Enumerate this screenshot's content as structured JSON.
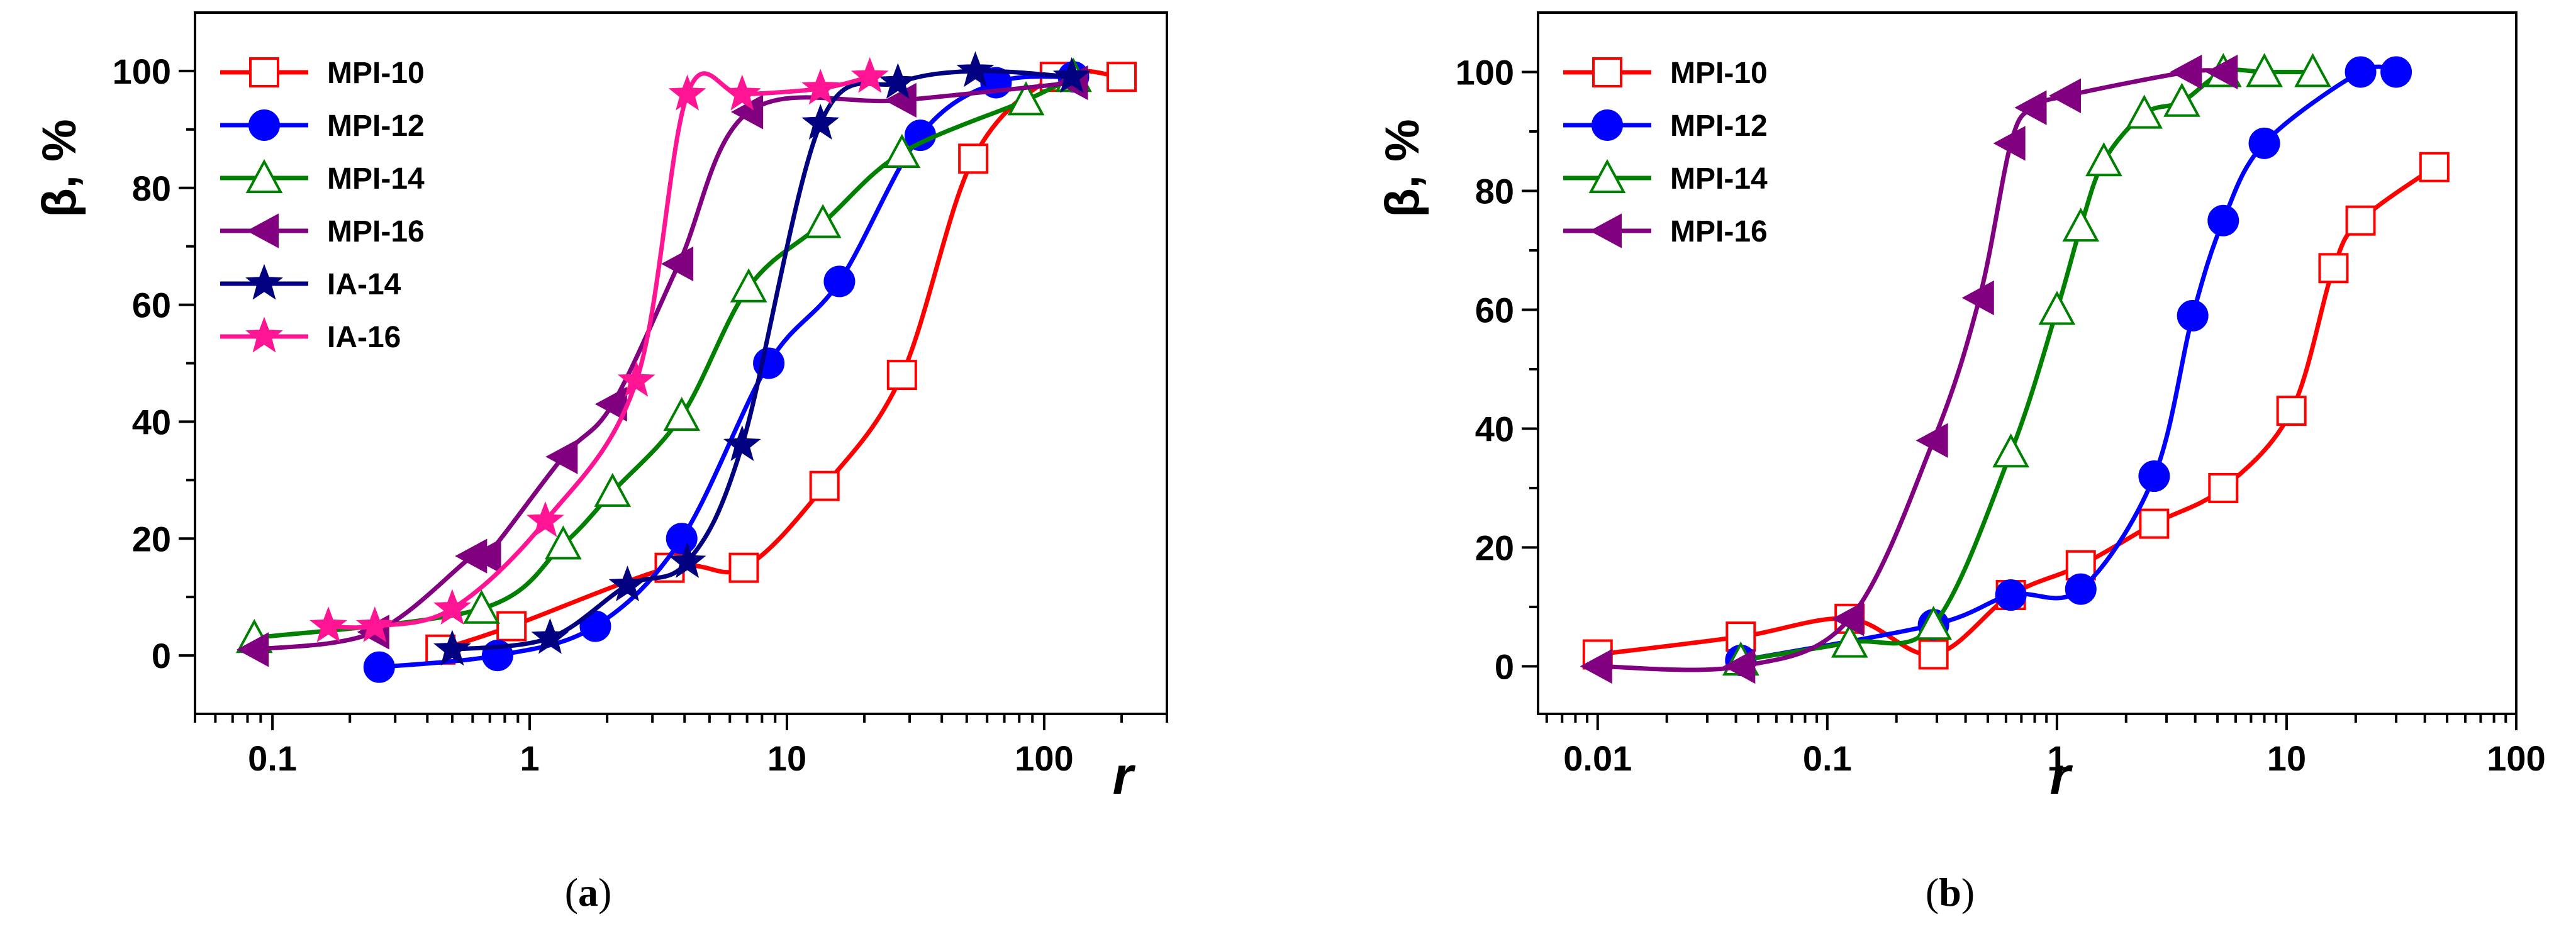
{
  "chart_data": [
    {
      "panel": "a",
      "caption": "(a)",
      "type": "scatter",
      "xscale": "log",
      "xlim": [
        0.05,
        300
      ],
      "ylim": [
        -10,
        110
      ],
      "xlabel": "r",
      "ylabel": "β, %",
      "xticks": [
        0.1,
        1,
        10,
        100
      ],
      "xtick_labels": [
        "0.1",
        "1",
        "10",
        "100"
      ],
      "yticks": [
        0,
        20,
        40,
        60,
        80,
        100
      ],
      "ytick_labels": [
        "0",
        "20",
        "40",
        "60",
        "80",
        "100"
      ],
      "legend_position": "top-left",
      "series": [
        {
          "name": "MPI-10",
          "color": "#ff0000",
          "marker": "square-open",
          "x": [
            0.45,
            0.85,
            3.5,
            6.8,
            14,
            28,
            53,
            110,
            200
          ],
          "y": [
            1,
            5,
            15,
            15,
            29,
            48,
            85,
            99,
            99
          ]
        },
        {
          "name": "MPI-12",
          "color": "#0000ff",
          "marker": "circle-filled",
          "x": [
            0.26,
            0.75,
            1.8,
            3.9,
            8.5,
            16,
            33,
            65,
            130
          ],
          "y": [
            -2,
            0,
            5,
            20,
            50,
            64,
            89,
            98,
            99
          ]
        },
        {
          "name": "MPI-14",
          "color": "#008000",
          "marker": "triangle-open",
          "x": [
            0.085,
            0.65,
            1.35,
            2.1,
            3.9,
            7.1,
            13.8,
            28,
            85,
            130
          ],
          "y": [
            3,
            8,
            19,
            28,
            41,
            63,
            74,
            86,
            95,
            99
          ]
        },
        {
          "name": "MPI-16",
          "color": "#800080",
          "marker": "triangle-left-filled",
          "x": [
            0.085,
            0.25,
            0.6,
            0.68,
            1.35,
            2.1,
            3.8,
            7.1,
            28,
            130
          ],
          "y": [
            1,
            4,
            17,
            17,
            34,
            43,
            67,
            93,
            95,
            98
          ]
        },
        {
          "name": "IA-14",
          "color": "#000080",
          "marker": "star-filled",
          "x": [
            0.5,
            1.2,
            2.4,
            4.1,
            6.7,
            13.5,
            27,
            54,
            128
          ],
          "y": [
            1,
            3,
            12,
            16,
            36,
            91,
            98,
            100,
            99
          ]
        },
        {
          "name": "IA-16",
          "color": "#ff1493",
          "marker": "star-filled",
          "x": [
            0.165,
            0.25,
            0.5,
            1.15,
            2.6,
            4.1,
            6.7,
            13.5,
            21
          ],
          "y": [
            5,
            5,
            8,
            23,
            47,
            96,
            96,
            97,
            99
          ]
        }
      ]
    },
    {
      "panel": "b",
      "caption": "(b)",
      "type": "scatter",
      "xscale": "log",
      "xlim": [
        0.0055,
        100
      ],
      "ylim": [
        -8,
        110
      ],
      "xlabel": "r",
      "ylabel": "β, %",
      "xticks": [
        0.01,
        0.1,
        1,
        10,
        100
      ],
      "xtick_labels": [
        "0.01",
        "0.1",
        "1",
        "10",
        "100"
      ],
      "yticks": [
        0,
        20,
        40,
        60,
        80,
        100
      ],
      "ytick_labels": [
        "0",
        "20",
        "40",
        "60",
        "80",
        "100"
      ],
      "legend_position": "top-left",
      "series": [
        {
          "name": "MPI-10",
          "color": "#ff0000",
          "marker": "square-open",
          "x": [
            0.01,
            0.042,
            0.125,
            0.29,
            0.63,
            1.27,
            2.65,
            5.3,
            10.5,
            16,
            21,
            44
          ],
          "y": [
            2,
            5,
            8,
            2,
            12,
            17,
            24,
            30,
            43,
            67,
            75,
            84
          ]
        },
        {
          "name": "MPI-12",
          "color": "#0000ff",
          "marker": "circle-filled",
          "x": [
            0.042,
            0.29,
            0.63,
            1.27,
            2.65,
            3.9,
            5.3,
            8,
            21,
            30
          ],
          "y": [
            1,
            7,
            12,
            13,
            32,
            59,
            75,
            88,
            100,
            100
          ]
        },
        {
          "name": "MPI-14",
          "color": "#008000",
          "marker": "triangle-open",
          "x": [
            0.042,
            0.125,
            0.29,
            0.63,
            1.0,
            1.27,
            1.6,
            2.4,
            3.5,
            5.3,
            8,
            13
          ],
          "y": [
            1,
            4,
            7,
            36,
            60,
            74,
            85,
            93,
            95,
            100,
            100,
            100
          ]
        },
        {
          "name": "MPI-16",
          "color": "#800080",
          "marker": "triangle-left-filled",
          "x": [
            0.01,
            0.042,
            0.125,
            0.29,
            0.46,
            0.63,
            0.78,
            1.1,
            3.7,
            5.3
          ],
          "y": [
            0,
            0,
            8,
            38,
            62,
            88,
            94,
            96,
            100,
            100
          ]
        }
      ]
    }
  ]
}
